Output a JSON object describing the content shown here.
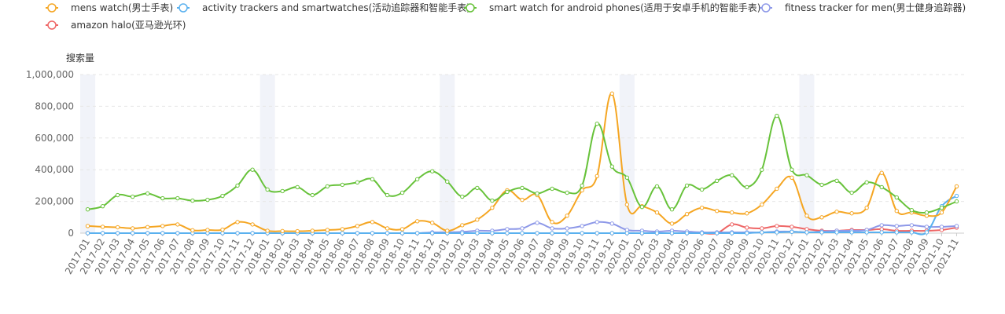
{
  "chart_data": {
    "type": "line",
    "ylabel": "搜索量",
    "ylim": [
      0,
      1000000
    ],
    "yticks": [
      0,
      200000,
      400000,
      600000,
      800000,
      1000000
    ],
    "ytick_labels": [
      "0",
      "200,000",
      "400,000",
      "600,000",
      "800,000",
      "1,000,000"
    ],
    "grid": true,
    "legend_position": "top-left",
    "categories": [
      "2017-01",
      "2017-02",
      "2017-03",
      "2017-04",
      "2017-05",
      "2017-06",
      "2017-07",
      "2017-08",
      "2017-09",
      "2017-10",
      "2017-11",
      "2017-12",
      "2018-01",
      "2018-02",
      "2018-03",
      "2018-04",
      "2018-05",
      "2018-06",
      "2018-07",
      "2018-08",
      "2018-09",
      "2018-10",
      "2018-11",
      "2018-12",
      "2019-01",
      "2019-02",
      "2019-03",
      "2019-04",
      "2019-05",
      "2019-06",
      "2019-07",
      "2019-08",
      "2019-09",
      "2019-10",
      "2019-11",
      "2019-12",
      "2020-01",
      "2020-02",
      "2020-03",
      "2020-04",
      "2020-05",
      "2020-06",
      "2020-07",
      "2020-08",
      "2020-09",
      "2020-10",
      "2020-11",
      "2020-12",
      "2021-01",
      "2021-02",
      "2021-03",
      "2021-04",
      "2021-05",
      "2021-06",
      "2021-07",
      "2021-08",
      "2021-09",
      "2021-10",
      "2021-11"
    ],
    "highlight_bands": [
      "2017-01",
      "2018-01",
      "2019-01",
      "2020-01",
      "2021-01"
    ],
    "series": [
      {
        "name": "mens watch(男士手表)",
        "color": "#f5a623",
        "values": [
          45000,
          40000,
          37000,
          30000,
          38000,
          45000,
          55000,
          18000,
          20000,
          22000,
          70000,
          55000,
          15000,
          13000,
          12000,
          15000,
          20000,
          25000,
          45000,
          70000,
          30000,
          25000,
          75000,
          65000,
          15000,
          50000,
          85000,
          160000,
          270000,
          210000,
          240000,
          70000,
          110000,
          270000,
          360000,
          880000,
          180000,
          170000,
          130000,
          60000,
          120000,
          160000,
          140000,
          130000,
          125000,
          180000,
          280000,
          350000,
          110000,
          100000,
          135000,
          125000,
          160000,
          380000,
          140000,
          130000,
          110000,
          130000,
          295000
        ]
      },
      {
        "name": "activity trackers and smartwatches(活动追踪器和智能手表)",
        "color": "#5ab1ef",
        "values": [
          0,
          0,
          0,
          0,
          0,
          0,
          0,
          0,
          0,
          0,
          0,
          0,
          0,
          0,
          0,
          0,
          0,
          0,
          0,
          0,
          0,
          0,
          0,
          0,
          0,
          0,
          0,
          0,
          0,
          0,
          0,
          0,
          0,
          0,
          0,
          0,
          0,
          0,
          0,
          0,
          0,
          0,
          0,
          0,
          0,
          5000,
          5000,
          8000,
          5000,
          5000,
          5000,
          5000,
          5000,
          5000,
          5000,
          5000,
          5000,
          170000,
          235000
        ]
      },
      {
        "name": "smart watch for android phones(适用于安卓手机的智能手表)",
        "color": "#67c23a",
        "values": [
          150000,
          170000,
          240000,
          230000,
          250000,
          220000,
          220000,
          205000,
          210000,
          235000,
          300000,
          400000,
          275000,
          265000,
          290000,
          240000,
          295000,
          305000,
          320000,
          340000,
          240000,
          255000,
          340000,
          390000,
          325000,
          230000,
          285000,
          205000,
          260000,
          285000,
          250000,
          280000,
          255000,
          300000,
          690000,
          420000,
          350000,
          165000,
          295000,
          150000,
          300000,
          275000,
          330000,
          365000,
          290000,
          400000,
          740000,
          400000,
          365000,
          305000,
          330000,
          255000,
          320000,
          290000,
          225000,
          145000,
          130000,
          160000,
          200000
        ]
      },
      {
        "name": "fitness tracker for men(男士健身追踪器)",
        "color": "#8d98e8",
        "values": [
          0,
          0,
          0,
          0,
          0,
          0,
          0,
          0,
          0,
          0,
          0,
          0,
          0,
          0,
          0,
          0,
          0,
          0,
          0,
          0,
          0,
          0,
          0,
          5000,
          5000,
          8000,
          15000,
          15000,
          25000,
          30000,
          65000,
          30000,
          30000,
          45000,
          70000,
          60000,
          20000,
          15000,
          10000,
          15000,
          10000,
          5000,
          5000,
          5000,
          5000,
          5000,
          10000,
          10000,
          5000,
          10000,
          15000,
          15000,
          20000,
          50000,
          45000,
          50000,
          40000,
          40000,
          45000
        ]
      },
      {
        "name": "amazon halo(亚马逊光环)",
        "color": "#ee6666",
        "values": [
          0,
          0,
          0,
          0,
          0,
          0,
          0,
          0,
          0,
          0,
          0,
          0,
          0,
          0,
          0,
          0,
          0,
          0,
          0,
          0,
          0,
          0,
          0,
          0,
          0,
          0,
          0,
          0,
          0,
          0,
          0,
          0,
          0,
          0,
          0,
          0,
          0,
          0,
          0,
          0,
          0,
          0,
          0,
          55000,
          35000,
          30000,
          45000,
          40000,
          25000,
          15000,
          15000,
          20000,
          20000,
          25000,
          15000,
          15000,
          15000,
          20000,
          35000
        ]
      }
    ]
  }
}
